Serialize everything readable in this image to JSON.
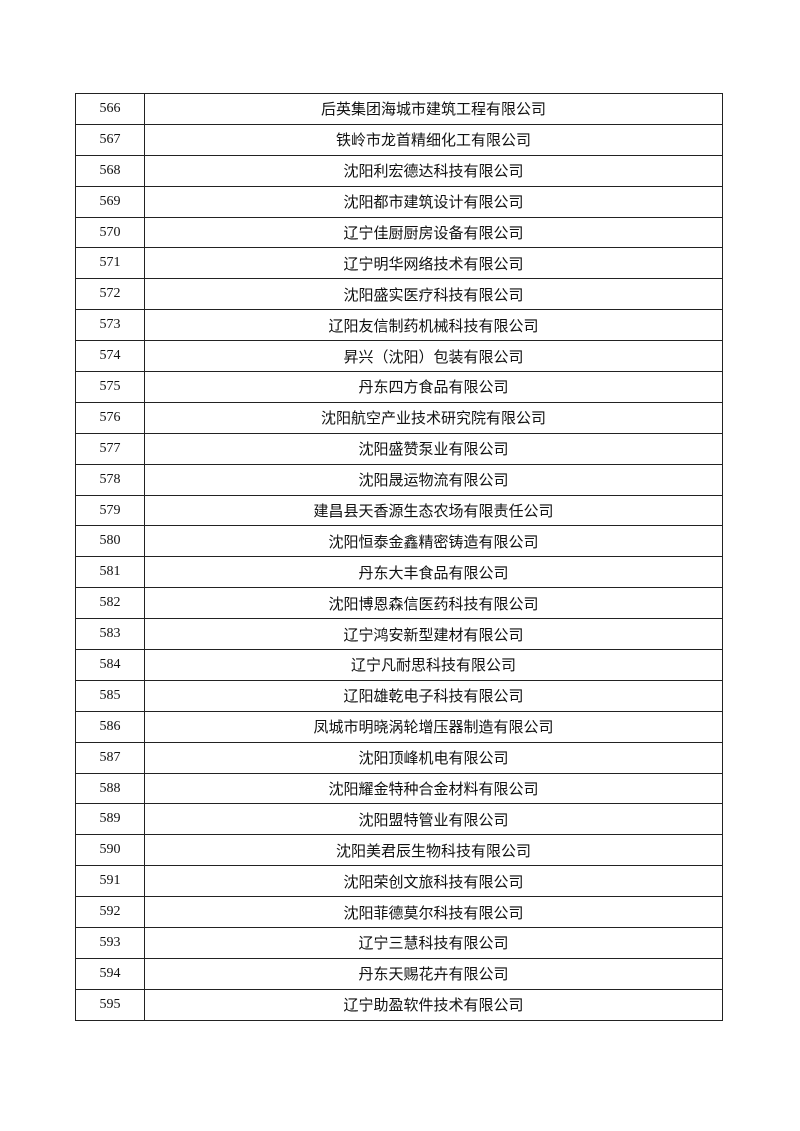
{
  "table": {
    "rows": [
      [
        "566",
        "后英集团海城市建筑工程有限公司"
      ],
      [
        "567",
        "铁岭市龙首精细化工有限公司"
      ],
      [
        "568",
        "沈阳利宏德达科技有限公司"
      ],
      [
        "569",
        "沈阳都市建筑设计有限公司"
      ],
      [
        "570",
        "辽宁佳厨厨房设备有限公司"
      ],
      [
        "571",
        "辽宁明华网络技术有限公司"
      ],
      [
        "572",
        "沈阳盛实医疗科技有限公司"
      ],
      [
        "573",
        "辽阳友信制药机械科技有限公司"
      ],
      [
        "574",
        "昇兴（沈阳）包装有限公司"
      ],
      [
        "575",
        "丹东四方食品有限公司"
      ],
      [
        "576",
        "沈阳航空产业技术研究院有限公司"
      ],
      [
        "577",
        "沈阳盛赞泵业有限公司"
      ],
      [
        "578",
        "沈阳晟运物流有限公司"
      ],
      [
        "579",
        "建昌县天香源生态农场有限责任公司"
      ],
      [
        "580",
        "沈阳恒泰金鑫精密铸造有限公司"
      ],
      [
        "581",
        "丹东大丰食品有限公司"
      ],
      [
        "582",
        "沈阳博恩森信医药科技有限公司"
      ],
      [
        "583",
        "辽宁鸿安新型建材有限公司"
      ],
      [
        "584",
        "辽宁凡耐思科技有限公司"
      ],
      [
        "585",
        "辽阳雄乾电子科技有限公司"
      ],
      [
        "586",
        "凤城市明晓涡轮增压器制造有限公司"
      ],
      [
        "587",
        "沈阳顶峰机电有限公司"
      ],
      [
        "588",
        "沈阳耀金特种合金材料有限公司"
      ],
      [
        "589",
        "沈阳盟特管业有限公司"
      ],
      [
        "590",
        "沈阳美君辰生物科技有限公司"
      ],
      [
        "591",
        "沈阳荣创文旅科技有限公司"
      ],
      [
        "592",
        "沈阳菲德莫尔科技有限公司"
      ],
      [
        "593",
        "辽宁三慧科技有限公司"
      ],
      [
        "594",
        "丹东天赐花卉有限公司"
      ],
      [
        "595",
        "辽宁助盈软件技术有限公司"
      ]
    ]
  }
}
